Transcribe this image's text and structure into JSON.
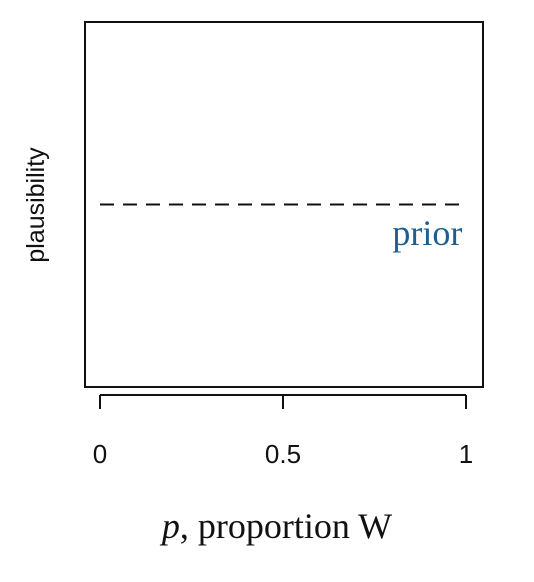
{
  "chart_data": {
    "type": "line",
    "xlabel_var": "p",
    "xlabel_rest": ", proportion W",
    "ylabel": "plausibility",
    "xlim": [
      0,
      1
    ],
    "ylim": [
      0,
      2
    ],
    "x_ticks": [
      0,
      0.5,
      1
    ],
    "x_tick_labels": [
      "0",
      "0.5",
      "1"
    ],
    "y_ticks_shown": false,
    "grid": false,
    "series": [
      {
        "name": "prior",
        "style": "dashed",
        "color": "#111111",
        "x": [
          0,
          1
        ],
        "y": [
          1,
          1
        ]
      }
    ],
    "annotations": [
      {
        "text": "prior",
        "x": 0.99,
        "y": 0.8,
        "anchor": "end",
        "color": "#1f5f8f"
      }
    ]
  }
}
